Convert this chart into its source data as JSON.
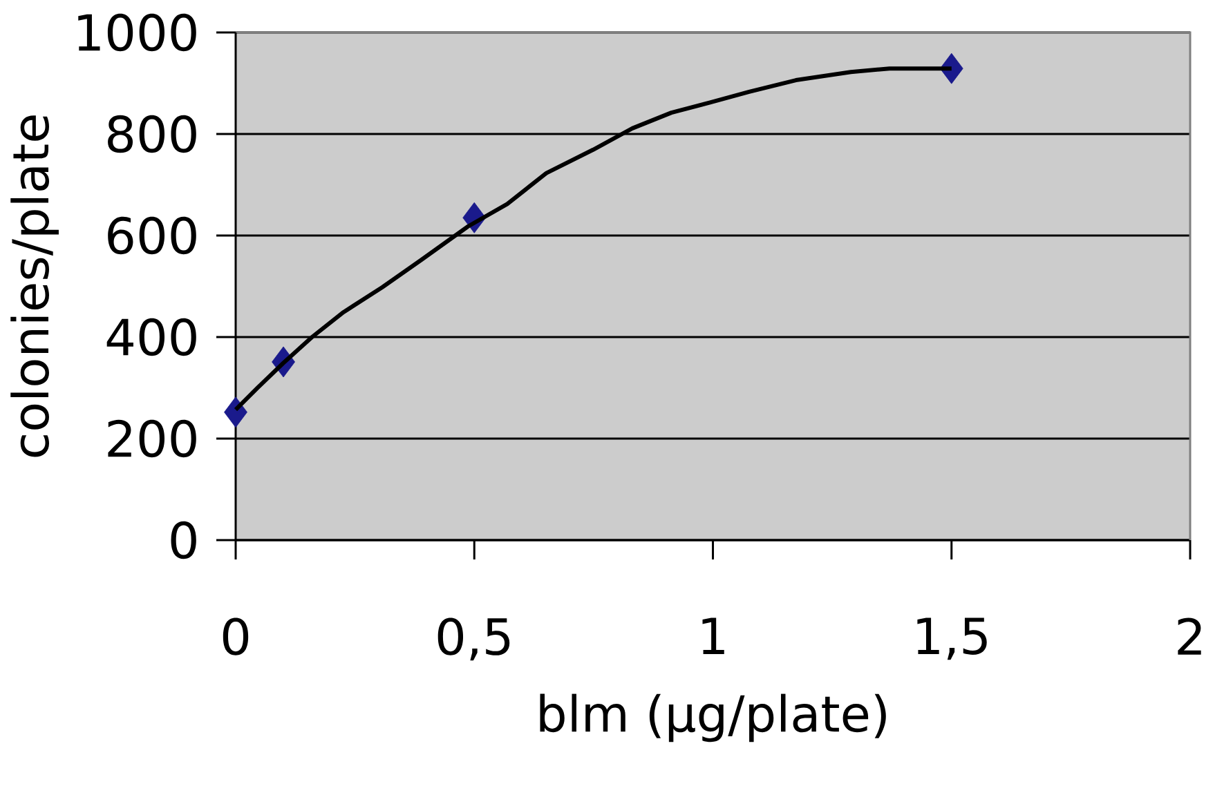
{
  "chart_data": {
    "type": "scatter",
    "xlabel": "blm (µg/plate)",
    "ylabel": "colonies/plate",
    "xlim": [
      0,
      2
    ],
    "ylim": [
      0,
      1000
    ],
    "xticks": [
      0,
      {
        "value": 0.5,
        "label": "0,5"
      },
      1,
      {
        "value": 1.5,
        "label": "1,5"
      },
      2
    ],
    "yticks": [
      0,
      200,
      400,
      600,
      800,
      1000
    ],
    "grid": "y",
    "series": [
      {
        "marker": "diamond",
        "color": "#1a1a8c",
        "x": [
          0,
          0.1,
          0.5,
          1.5
        ],
        "values": [
          252,
          351,
          635,
          929
        ]
      },
      {
        "type": "line",
        "marker": "none",
        "line_style": "solid",
        "color": "#000000",
        "x": [
          0,
          0.046,
          0.1,
          0.16,
          0.226,
          0.307,
          0.389,
          0.487,
          0.569,
          0.651,
          0.749,
          0.831,
          0.913,
          0.994,
          1.076,
          1.174,
          1.289,
          1.37,
          1.5
        ],
        "values": [
          257,
          300,
          349,
          400,
          449,
          498,
          552,
          618,
          662,
          723,
          769,
          811,
          842,
          862,
          883,
          906,
          922,
          929,
          929
        ]
      }
    ]
  }
}
